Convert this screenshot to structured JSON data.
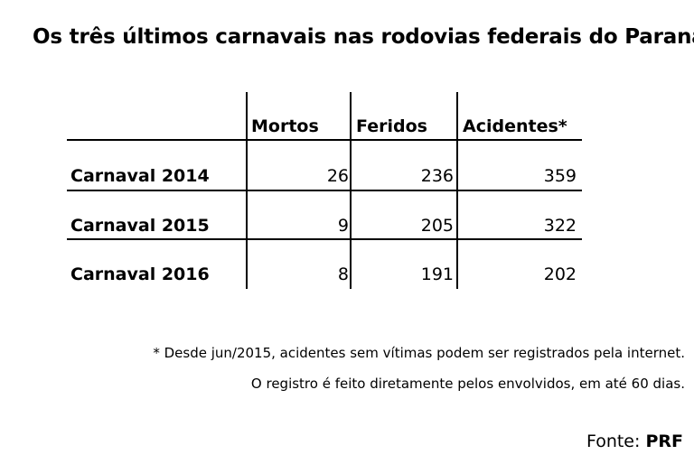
{
  "chart_data": {
    "type": "table",
    "title": "Os três últimos carnavais nas rodovias federais do Paraná",
    "columns": [
      "Mortos",
      "Feridos",
      "Acidentes*"
    ],
    "rows": [
      {
        "label": "Carnaval 2014",
        "values": [
          "26",
          "236",
          "359"
        ]
      },
      {
        "label": "Carnaval 2015",
        "values": [
          "9",
          "205",
          "322"
        ]
      },
      {
        "label": "Carnaval 2016",
        "values": [
          "8",
          "191",
          "202"
        ]
      }
    ]
  },
  "footnote": {
    "line1": "* Desde jun/2015, acidentes sem vítimas podem ser registrados pela internet.",
    "line2": "O registro é feito diretamente pelos envolvidos, em até 60 dias."
  },
  "source": {
    "prefix": "Fonte:",
    "name": "PRF"
  }
}
